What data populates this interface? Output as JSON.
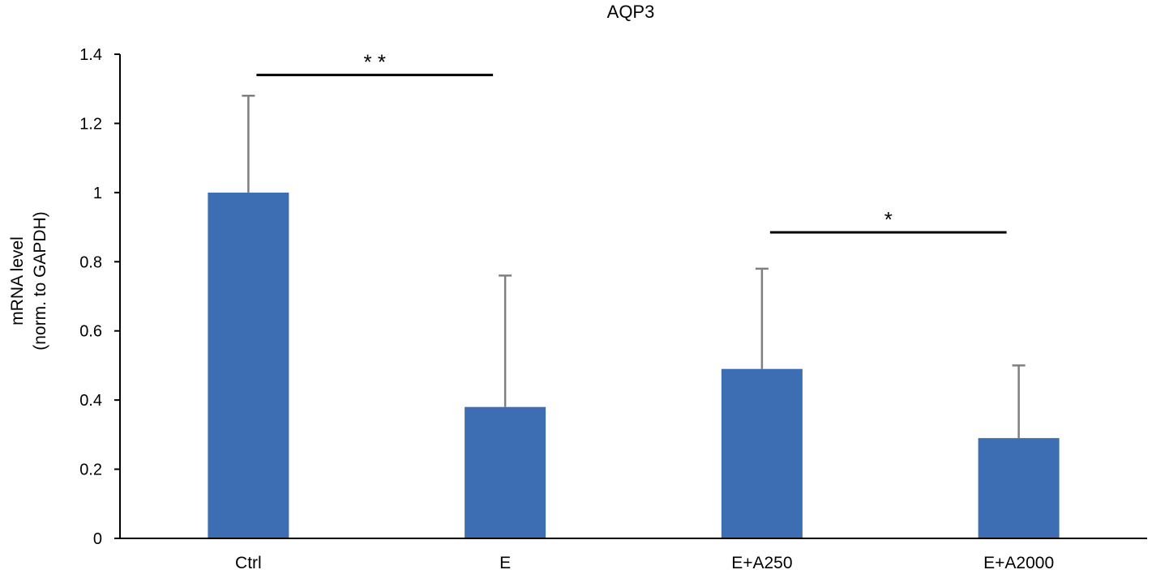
{
  "chart_data": {
    "type": "bar",
    "title": "AQP3",
    "xlabel": "",
    "ylabel_line1": "mRNA level",
    "ylabel_line2": "(norm. to GAPDH)",
    "categories": [
      "Ctrl",
      "E",
      "E+A250",
      "E+A2000"
    ],
    "values": [
      1.0,
      0.38,
      0.49,
      0.29
    ],
    "error_upper": [
      1.28,
      0.76,
      0.78,
      0.5
    ],
    "ylim": [
      0,
      1.4
    ],
    "yticks": [
      0,
      0.2,
      0.4,
      0.6,
      0.8,
      1,
      1.2,
      1.4
    ],
    "ytick_labels": [
      "0",
      "0.2",
      "0.4",
      "0.6",
      "0.8",
      "1",
      "1.2",
      "1.4"
    ],
    "grid": false,
    "legend": "none",
    "bar_color": "#3d6eb4",
    "error_color": "#7f7f7f",
    "annotations": [
      {
        "from": 0,
        "to": 1,
        "y": 1.34,
        "label": "* *"
      },
      {
        "from": 2,
        "to": 3,
        "y": 0.885,
        "label": "*"
      }
    ]
  }
}
